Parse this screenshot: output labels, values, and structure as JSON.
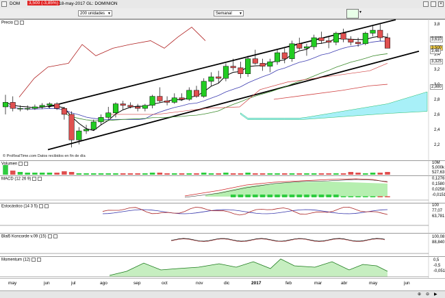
{
  "header": {
    "symbol": "DOM",
    "price_badge": "3,500 (-3,85%)",
    "title": "18-may-2017 GL: DOMINION"
  },
  "toolbar": {
    "units": "200 unidades",
    "period": "Semanal"
  },
  "price_panel": {
    "title": "Precio",
    "source": "© ProRealTime.com  Datos recibidos en fin de día",
    "y_ticks": [
      "3,8",
      "3,6",
      "3,4",
      "3,2",
      "3,0",
      "2,8",
      "2,6",
      "2,4",
      "2,2"
    ],
    "tags": [
      {
        "text": "3,625",
        "color": "#ffffff"
      },
      {
        "text": "3,610",
        "color": "#ffffff"
      },
      {
        "text": "3,500",
        "color": "#ffd84d"
      },
      {
        "text": "3,46",
        "color": "#ffffff"
      },
      {
        "text": "3,325",
        "color": "#ffffff"
      },
      {
        "text": "2,980",
        "color": "#ffffff"
      }
    ]
  },
  "volume_panel": {
    "title": "Volumen",
    "ticks": [
      "10M",
      "5,000k",
      "527,63"
    ]
  },
  "macd_panel": {
    "title": "MACD (12 26 9)",
    "ticks": [
      "0,1276",
      "0,1580",
      "0,0258",
      "-0,0151"
    ]
  },
  "stoch_panel": {
    "title": "Estocástico (14 3 5)",
    "ticks": [
      "100",
      "77,07",
      "63,781"
    ]
  },
  "konc_panel": {
    "title": "Blai5 Koncorde v.09 (15)",
    "ticks": [
      "100,08",
      "88,840"
    ]
  },
  "mom_panel": {
    "title": "Momentum (12)",
    "ticks": [
      "0,5",
      "-0,5",
      "-0,051"
    ]
  },
  "x_axis": [
    "may",
    "jun",
    "jul",
    "ago",
    "sep",
    "oct",
    "nov",
    "dic",
    "2017",
    "feb",
    "mar",
    "abr",
    "may",
    "jun"
  ],
  "chart_data": {
    "type": "candlestick",
    "title": "DOMINION",
    "period": "weekly",
    "ylim": [
      2.1,
      3.85
    ],
    "candles": [
      [
        2.72,
        2.88,
        2.62,
        2.78
      ],
      [
        2.78,
        2.86,
        2.66,
        2.7
      ],
      [
        2.7,
        2.74,
        2.66,
        2.7
      ],
      [
        2.7,
        2.74,
        2.67,
        2.7
      ],
      [
        2.7,
        2.75,
        2.68,
        2.72
      ],
      [
        2.72,
        2.77,
        2.69,
        2.74
      ],
      [
        2.74,
        2.78,
        2.7,
        2.76
      ],
      [
        2.76,
        2.78,
        2.68,
        2.7
      ],
      [
        2.7,
        2.72,
        2.55,
        2.62
      ],
      [
        2.62,
        2.66,
        2.18,
        2.28
      ],
      [
        2.28,
        2.45,
        2.22,
        2.4
      ],
      [
        2.4,
        2.48,
        2.36,
        2.42
      ],
      [
        2.42,
        2.55,
        2.4,
        2.52
      ],
      [
        2.52,
        2.62,
        2.48,
        2.58
      ],
      [
        2.58,
        2.72,
        2.55,
        2.64
      ],
      [
        2.64,
        2.78,
        2.58,
        2.76
      ],
      [
        2.76,
        2.8,
        2.68,
        2.74
      ],
      [
        2.74,
        2.78,
        2.7,
        2.72
      ],
      [
        2.72,
        2.76,
        2.66,
        2.7
      ],
      [
        2.7,
        2.76,
        2.66,
        2.74
      ],
      [
        2.74,
        2.88,
        2.7,
        2.86
      ],
      [
        2.86,
        2.98,
        2.78,
        2.8
      ],
      [
        2.8,
        2.86,
        2.74,
        2.78
      ],
      [
        2.78,
        2.9,
        2.76,
        2.84
      ],
      [
        2.84,
        2.9,
        2.8,
        2.82
      ],
      [
        2.82,
        2.98,
        2.8,
        2.94
      ],
      [
        2.94,
        3.0,
        2.84,
        2.86
      ],
      [
        2.86,
        3.1,
        2.84,
        3.06
      ],
      [
        3.06,
        3.18,
        3.0,
        3.12
      ],
      [
        3.12,
        3.2,
        3.04,
        3.1
      ],
      [
        3.1,
        3.3,
        3.06,
        3.26
      ],
      [
        3.26,
        3.36,
        3.2,
        3.24
      ],
      [
        3.24,
        3.32,
        3.1,
        3.16
      ],
      [
        3.16,
        3.4,
        3.12,
        3.36
      ],
      [
        3.36,
        3.48,
        3.28,
        3.3
      ],
      [
        3.3,
        3.36,
        3.2,
        3.26
      ],
      [
        3.26,
        3.36,
        3.18,
        3.32
      ],
      [
        3.32,
        3.48,
        3.28,
        3.44
      ],
      [
        3.44,
        3.5,
        3.3,
        3.36
      ],
      [
        3.36,
        3.6,
        3.32,
        3.56
      ],
      [
        3.56,
        3.64,
        3.48,
        3.5
      ],
      [
        3.5,
        3.56,
        3.4,
        3.52
      ],
      [
        3.52,
        3.68,
        3.48,
        3.64
      ],
      [
        3.64,
        3.72,
        3.56,
        3.6
      ],
      [
        3.6,
        3.66,
        3.5,
        3.58
      ],
      [
        3.58,
        3.72,
        3.54,
        3.7
      ],
      [
        3.7,
        3.76,
        3.58,
        3.62
      ],
      [
        3.62,
        3.66,
        3.54,
        3.58
      ],
      [
        3.58,
        3.64,
        3.52,
        3.56
      ],
      [
        3.56,
        3.72,
        3.54,
        3.7
      ],
      [
        3.7,
        3.8,
        3.66,
        3.74
      ],
      [
        3.74,
        3.82,
        3.6,
        3.64
      ],
      [
        3.64,
        3.7,
        3.5,
        3.5
      ]
    ]
  },
  "colors": {
    "up": "#22cc22",
    "down": "#e05050",
    "channel": "#000000",
    "cloud": "#a8f0f8",
    "volume": "#2ecc40"
  }
}
